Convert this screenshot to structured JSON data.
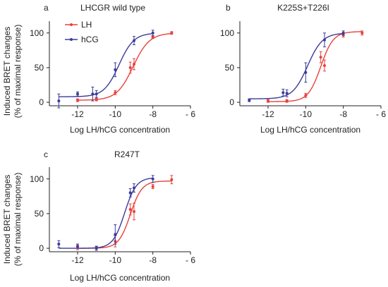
{
  "figure": {
    "ylabel_line1": "Induced BRET changes",
    "ylabel_line2": "(% of maximal response)"
  },
  "legend": [
    {
      "label": "LH",
      "color": "#e8413c"
    },
    {
      "label": "hCG",
      "color": "#3b3b9a"
    }
  ],
  "chart_data": [
    {
      "type": "line",
      "panel_label": "a",
      "title": "LHCGR wild type",
      "xlabel": "Log LH/hCG concentration",
      "ylabel": "Induced BRET changes (% of maximal response)",
      "xlim": [
        -13.5,
        -6
      ],
      "ylim": [
        -5,
        115
      ],
      "xticks": [
        -12,
        -10,
        -8,
        -6
      ],
      "xtick_labels": [
        "-12",
        "-10",
        "-8",
        "- 6"
      ],
      "yticks": [
        0,
        50,
        100
      ],
      "ytick_labels": [
        "0",
        "50",
        "100"
      ],
      "series": [
        {
          "name": "LH",
          "color": "#e8413c",
          "x": [
            -12,
            -11,
            -10,
            -9.2,
            -9,
            -8,
            -7
          ],
          "y": [
            3,
            4,
            14,
            50,
            55,
            94,
            100
          ],
          "err": [
            2,
            2,
            3,
            8,
            8,
            2,
            2
          ],
          "fit": {
            "bottom": 3,
            "top": 100,
            "logEC50": -9.05,
            "hill": 1.0
          }
        },
        {
          "name": "hCG",
          "color": "#3b3b9a",
          "x": [
            -13,
            -12,
            -11.2,
            -11,
            -10,
            -9,
            -8
          ],
          "y": [
            2,
            12,
            12,
            12,
            47,
            89,
            100
          ],
          "err": [
            10,
            3,
            10,
            5,
            10,
            6,
            4
          ],
          "fit": {
            "bottom": 8,
            "top": 100,
            "logEC50": -9.8,
            "hill": 1.1
          }
        }
      ]
    },
    {
      "type": "line",
      "panel_label": "b",
      "title": "K225S+T226I",
      "xlabel": "Log LH/hCG concentration",
      "ylabel": "",
      "xlim": [
        -13.5,
        -6
      ],
      "ylim": [
        -5,
        115
      ],
      "xticks": [
        -12,
        -10,
        -8,
        -6
      ],
      "xtick_labels": [
        "-12",
        "-10",
        "-8",
        "- 6"
      ],
      "yticks": [
        0,
        50,
        100
      ],
      "ytick_labels": [
        "0",
        "50",
        "100"
      ],
      "series": [
        {
          "name": "LH",
          "color": "#e8413c",
          "x": [
            -12,
            -11,
            -10,
            -9.2,
            -9,
            -8,
            -7
          ],
          "y": [
            2,
            2,
            10,
            65,
            53,
            97,
            100
          ],
          "err": [
            2,
            2,
            3,
            8,
            8,
            3,
            3
          ],
          "fit": {
            "bottom": 1,
            "top": 102,
            "logEC50": -9.2,
            "hill": 1.3
          }
        },
        {
          "name": "hCG",
          "color": "#3b3b9a",
          "x": [
            -13,
            -11.2,
            -11,
            -10,
            -9,
            -8
          ],
          "y": [
            3,
            14,
            13,
            43,
            90,
            100
          ],
          "err": [
            2,
            5,
            5,
            14,
            10,
            3
          ],
          "fit": {
            "bottom": 5,
            "top": 100,
            "logEC50": -9.9,
            "hill": 1.1
          }
        }
      ]
    },
    {
      "type": "line",
      "panel_label": "c",
      "title": "R247T",
      "xlabel": "Log LH/hCG concentration",
      "ylabel": "Induced BRET changes (% of maximal response)",
      "xlim": [
        -13.5,
        -6
      ],
      "ylim": [
        -5,
        115
      ],
      "xticks": [
        -12,
        -10,
        -8,
        -6
      ],
      "xtick_labels": [
        "-12",
        "-10",
        "-8",
        "- 6"
      ],
      "yticks": [
        0,
        50,
        100
      ],
      "ytick_labels": [
        "0",
        "50",
        "100"
      ],
      "series": [
        {
          "name": "LH",
          "color": "#e8413c",
          "x": [
            -12,
            -11,
            -10,
            -9.2,
            -9,
            -8,
            -7
          ],
          "y": [
            2,
            1,
            10,
            56,
            53,
            89,
            99
          ],
          "err": [
            4,
            2,
            8,
            8,
            12,
            3,
            6
          ],
          "fit": {
            "bottom": 0,
            "top": 97,
            "logEC50": -9.2,
            "hill": 1.4
          }
        },
        {
          "name": "hCG",
          "color": "#3b3b9a",
          "x": [
            -13,
            -12,
            -11,
            -10,
            -9.2,
            -9,
            -8
          ],
          "y": [
            6,
            3,
            0,
            20,
            80,
            87,
            100
          ],
          "err": [
            5,
            3,
            3,
            14,
            6,
            6,
            5
          ],
          "fit": {
            "bottom": 0,
            "top": 102,
            "logEC50": -9.5,
            "hill": 1.4
          }
        }
      ]
    }
  ]
}
